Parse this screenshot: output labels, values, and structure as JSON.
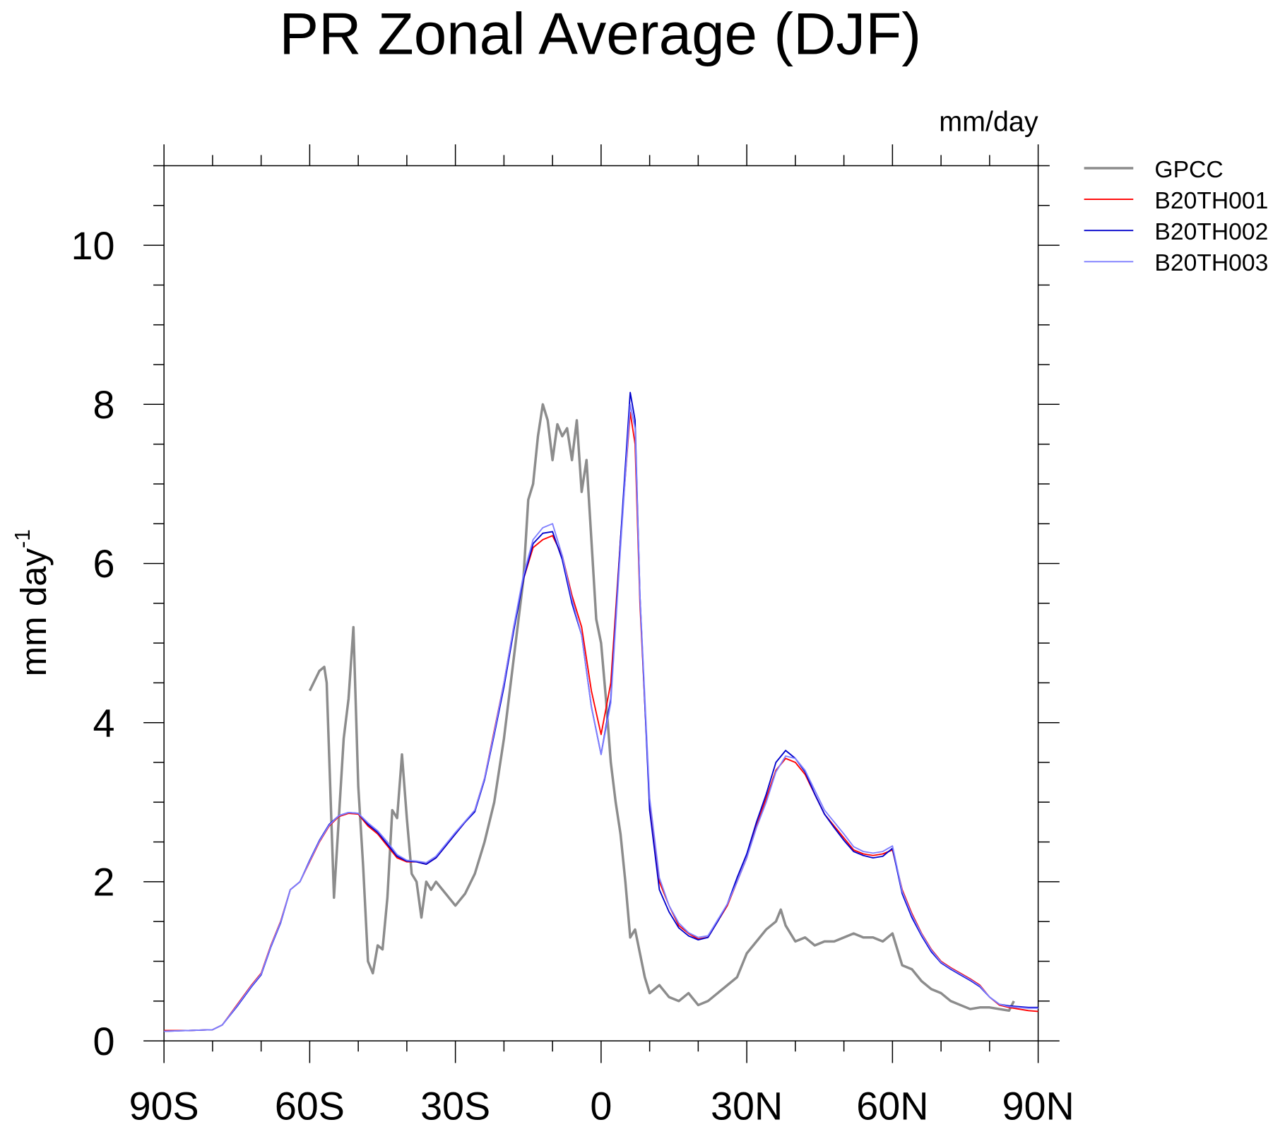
{
  "chart_data": {
    "type": "line",
    "title": "PR Zonal Average (DJF)",
    "units": "mm/day",
    "ylabel": "mm day",
    "ylabel_superscript": "-1",
    "xlim": [
      -90,
      90
    ],
    "xticks": [
      {
        "value": -90,
        "label": "90S"
      },
      {
        "value": -60,
        "label": "60S"
      },
      {
        "value": -30,
        "label": "30S"
      },
      0,
      {
        "value": 30,
        "label": "30N"
      },
      {
        "value": 60,
        "label": "60N"
      },
      {
        "value": 90,
        "label": "90N"
      }
    ],
    "xminorticks": [
      -80,
      -70,
      -50,
      -40,
      -20,
      -10,
      10,
      20,
      40,
      50,
      70,
      80
    ],
    "ylim": [
      0,
      11
    ],
    "yticks": [
      0,
      2,
      4,
      6,
      8,
      10
    ],
    "yminorticks": [
      0.5,
      1,
      1.5,
      2.5,
      3,
      3.5,
      4.5,
      5,
      5.5,
      6.5,
      7,
      7.5,
      8.5,
      9,
      9.5,
      10.5,
      11
    ],
    "series": [
      {
        "name": "GPCC",
        "color": "#8c8c8c",
        "width": 3,
        "x": [
          -60,
          -58,
          -57,
          -56.5,
          -55,
          -53,
          -52,
          -51,
          -50,
          -49,
          -48,
          -47,
          -46,
          -45,
          -44,
          -43,
          -42,
          -41,
          -40,
          -39,
          -38,
          -37,
          -36,
          -35,
          -34,
          -32,
          -30,
          -28,
          -26,
          -24,
          -22,
          -20,
          -18,
          -16,
          -15,
          -14,
          -13,
          -12,
          -11,
          -10,
          -9,
          -8,
          -7,
          -6,
          -5,
          -4,
          -3,
          -2,
          -1,
          0,
          1,
          2,
          3,
          4,
          5,
          6,
          7,
          8,
          9,
          10,
          12,
          14,
          16,
          18,
          20,
          22,
          24,
          26,
          28,
          30,
          32,
          34,
          36,
          37,
          38,
          40,
          42,
          44,
          46,
          48,
          50,
          52,
          54,
          56,
          58,
          60,
          62,
          64,
          66,
          68,
          70,
          72,
          74,
          76,
          78,
          80,
          82,
          84,
          85
        ],
        "values": [
          4.4,
          4.65,
          4.7,
          4.5,
          1.8,
          3.8,
          4.3,
          5.2,
          3.2,
          2.2,
          1.0,
          0.85,
          1.2,
          1.15,
          1.8,
          2.9,
          2.8,
          3.6,
          2.8,
          2.1,
          2.0,
          1.55,
          2.0,
          1.9,
          2.0,
          1.85,
          1.7,
          1.85,
          2.1,
          2.5,
          3.0,
          3.8,
          4.8,
          5.8,
          6.8,
          7.0,
          7.6,
          8.0,
          7.8,
          7.3,
          7.75,
          7.6,
          7.7,
          7.3,
          7.8,
          6.9,
          7.3,
          6.3,
          5.3,
          5.0,
          4.3,
          3.5,
          3.0,
          2.6,
          2.0,
          1.3,
          1.4,
          1.1,
          0.8,
          0.6,
          0.7,
          0.55,
          0.5,
          0.6,
          0.45,
          0.5,
          0.6,
          0.7,
          0.8,
          1.1,
          1.25,
          1.4,
          1.5,
          1.65,
          1.45,
          1.25,
          1.3,
          1.2,
          1.25,
          1.25,
          1.3,
          1.35,
          1.3,
          1.3,
          1.25,
          1.35,
          0.95,
          0.9,
          0.75,
          0.65,
          0.6,
          0.5,
          0.45,
          0.4,
          0.42,
          0.42,
          0.4,
          0.38,
          0.5
        ]
      },
      {
        "name": "B20TH001",
        "color": "#ff0000",
        "width": 1.6,
        "x": [
          -90,
          -85,
          -80,
          -78,
          -75,
          -72,
          -70,
          -68,
          -66,
          -64,
          -62,
          -60,
          -58,
          -56,
          -54,
          -52,
          -50,
          -48,
          -46,
          -44,
          -42,
          -40,
          -38,
          -36,
          -34,
          -32,
          -30,
          -28,
          -26,
          -24,
          -22,
          -20,
          -18,
          -16,
          -14,
          -12,
          -10,
          -8,
          -6,
          -4,
          -2,
          0,
          2,
          4,
          6,
          7,
          8,
          10,
          12,
          14,
          16,
          18,
          20,
          22,
          24,
          26,
          28,
          30,
          32,
          34,
          36,
          38,
          40,
          42,
          44,
          46,
          48,
          50,
          52,
          54,
          56,
          58,
          60,
          62,
          64,
          66,
          68,
          70,
          72,
          74,
          76,
          78,
          80,
          82,
          84,
          86,
          88,
          90
        ],
        "values": [
          0.13,
          0.13,
          0.14,
          0.2,
          0.45,
          0.7,
          0.85,
          1.2,
          1.5,
          1.9,
          2.0,
          2.25,
          2.5,
          2.7,
          2.82,
          2.86,
          2.85,
          2.7,
          2.6,
          2.45,
          2.3,
          2.25,
          2.25,
          2.22,
          2.3,
          2.45,
          2.6,
          2.75,
          2.9,
          3.3,
          3.9,
          4.5,
          5.2,
          5.8,
          6.2,
          6.3,
          6.35,
          6.1,
          5.6,
          5.2,
          4.4,
          3.85,
          4.5,
          6.3,
          7.9,
          7.5,
          5.5,
          3.0,
          2.0,
          1.7,
          1.45,
          1.35,
          1.28,
          1.3,
          1.5,
          1.7,
          2.0,
          2.3,
          2.7,
          3.05,
          3.4,
          3.55,
          3.5,
          3.35,
          3.1,
          2.85,
          2.7,
          2.55,
          2.4,
          2.35,
          2.33,
          2.35,
          2.4,
          1.9,
          1.6,
          1.35,
          1.15,
          1.0,
          0.92,
          0.85,
          0.78,
          0.7,
          0.55,
          0.45,
          0.42,
          0.4,
          0.38,
          0.37
        ]
      },
      {
        "name": "B20TH002",
        "color": "#0000cc",
        "width": 1.6,
        "x": [
          -90,
          -85,
          -80,
          -78,
          -75,
          -72,
          -70,
          -68,
          -66,
          -64,
          -62,
          -60,
          -58,
          -56,
          -54,
          -52,
          -50,
          -48,
          -46,
          -44,
          -42,
          -40,
          -38,
          -36,
          -34,
          -32,
          -30,
          -28,
          -26,
          -24,
          -22,
          -20,
          -18,
          -16,
          -14,
          -12,
          -10,
          -8,
          -6,
          -4,
          -2,
          0,
          2,
          4,
          6,
          7,
          8,
          10,
          12,
          14,
          16,
          18,
          20,
          22,
          24,
          26,
          28,
          30,
          32,
          34,
          36,
          38,
          40,
          42,
          44,
          46,
          48,
          50,
          52,
          54,
          56,
          58,
          60,
          62,
          64,
          66,
          68,
          70,
          72,
          74,
          76,
          78,
          80,
          82,
          84,
          86,
          88,
          90
        ],
        "values": [
          0.12,
          0.13,
          0.14,
          0.2,
          0.43,
          0.68,
          0.83,
          1.18,
          1.48,
          1.9,
          2.0,
          2.27,
          2.52,
          2.72,
          2.83,
          2.87,
          2.86,
          2.72,
          2.62,
          2.47,
          2.32,
          2.26,
          2.25,
          2.22,
          2.3,
          2.45,
          2.6,
          2.75,
          2.88,
          3.28,
          3.85,
          4.45,
          5.15,
          5.8,
          6.25,
          6.38,
          6.4,
          6.05,
          5.5,
          5.1,
          4.2,
          3.6,
          4.3,
          6.3,
          8.15,
          7.8,
          5.6,
          2.9,
          1.9,
          1.62,
          1.42,
          1.32,
          1.27,
          1.3,
          1.5,
          1.72,
          2.05,
          2.35,
          2.75,
          3.1,
          3.5,
          3.65,
          3.55,
          3.38,
          3.1,
          2.85,
          2.68,
          2.52,
          2.38,
          2.33,
          2.3,
          2.32,
          2.42,
          1.85,
          1.55,
          1.32,
          1.12,
          0.98,
          0.9,
          0.83,
          0.76,
          0.68,
          0.55,
          0.46,
          0.44,
          0.43,
          0.42,
          0.42
        ]
      },
      {
        "name": "B20TH003",
        "color": "#7f7fff",
        "width": 1.6,
        "x": [
          -90,
          -85,
          -80,
          -78,
          -75,
          -72,
          -70,
          -68,
          -66,
          -64,
          -62,
          -60,
          -58,
          -56,
          -54,
          -52,
          -50,
          -48,
          -46,
          -44,
          -42,
          -40,
          -38,
          -36,
          -34,
          -32,
          -30,
          -28,
          -26,
          -24,
          -22,
          -20,
          -18,
          -16,
          -14,
          -12,
          -10,
          -8,
          -6,
          -4,
          -2,
          0,
          2,
          4,
          6,
          7,
          8,
          10,
          12,
          14,
          16,
          18,
          20,
          22,
          24,
          26,
          28,
          30,
          32,
          34,
          36,
          38,
          40,
          42,
          44,
          46,
          48,
          50,
          52,
          54,
          56,
          58,
          60,
          62,
          64,
          66,
          68,
          70,
          72,
          74,
          76,
          78,
          80,
          82,
          84,
          86,
          88,
          90
        ],
        "values": [
          0.12,
          0.13,
          0.14,
          0.2,
          0.44,
          0.69,
          0.84,
          1.19,
          1.49,
          1.9,
          2.0,
          2.26,
          2.51,
          2.71,
          2.83,
          2.87,
          2.86,
          2.74,
          2.64,
          2.5,
          2.34,
          2.27,
          2.26,
          2.24,
          2.32,
          2.47,
          2.62,
          2.76,
          2.9,
          3.3,
          3.88,
          4.5,
          5.2,
          5.85,
          6.3,
          6.45,
          6.5,
          6.1,
          5.55,
          5.1,
          4.2,
          3.6,
          4.25,
          6.2,
          8.0,
          7.7,
          5.6,
          3.05,
          2.05,
          1.7,
          1.48,
          1.36,
          1.3,
          1.32,
          1.52,
          1.72,
          2.0,
          2.3,
          2.68,
          3.0,
          3.38,
          3.58,
          3.55,
          3.4,
          3.15,
          2.9,
          2.75,
          2.6,
          2.44,
          2.38,
          2.36,
          2.38,
          2.45,
          1.88,
          1.58,
          1.34,
          1.14,
          0.99,
          0.91,
          0.84,
          0.77,
          0.69,
          0.55,
          0.46,
          0.43,
          0.42,
          0.41,
          0.41
        ]
      }
    ]
  }
}
